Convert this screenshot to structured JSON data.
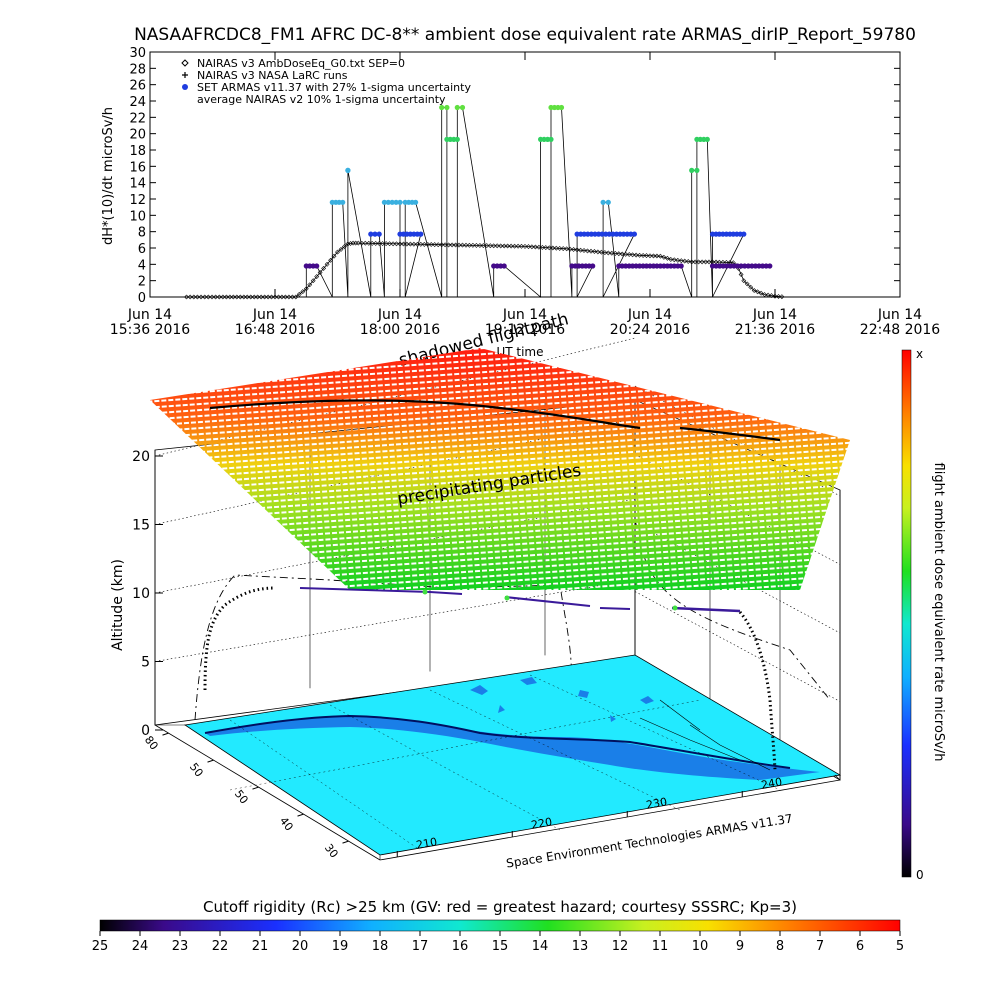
{
  "title": "NASAAFRCDC8_FM1 AFRC DC-8** ambient dose equivalent rate ARMAS_dirIP_Report_59780",
  "chart_data": [
    {
      "type": "scatter",
      "ylabel": "dH*(10)/dt microSv/h",
      "ylim": [
        0,
        30
      ],
      "yticks": [
        0,
        2,
        4,
        6,
        8,
        10,
        12,
        14,
        16,
        18,
        20,
        22,
        24,
        26,
        28,
        30
      ],
      "xlim_hours": [
        15.6,
        22.8
      ],
      "xticks": [
        {
          "hour": 15.6,
          "line1": "Jun 14",
          "line2": "15:36 2016"
        },
        {
          "hour": 16.8,
          "line1": "Jun 14",
          "line2": "16:48 2016"
        },
        {
          "hour": 18.0,
          "line1": "Jun 14",
          "line2": "18:00 2016"
        },
        {
          "hour": 19.2,
          "line1": "Jun 14",
          "line2": "19:12 2016"
        },
        {
          "hour": 20.4,
          "line1": "Jun 14",
          "line2": "20:24 2016"
        },
        {
          "hour": 21.6,
          "line1": "Jun 14",
          "line2": "21:36 2016"
        },
        {
          "hour": 22.8,
          "line1": "Jun 14",
          "line2": "22:48 2016"
        }
      ],
      "xlabel": "UT time",
      "legend_position": "top-left",
      "legend": [
        {
          "symbol": "diamond",
          "label": "NAIRAS v3 AmbDoseEq_G0.txt SEP=0"
        },
        {
          "symbol": "plus",
          "label": "NAIRAS v3 NASA LaRC runs"
        },
        {
          "symbol": "dot",
          "label": "SET ARMAS v11.37 with 27% 1-sigma uncertainty"
        },
        {
          "symbol": "none",
          "label": "average NAIRAS v2 10% 1-sigma uncertainty"
        }
      ],
      "series": [
        {
          "name": "NAIRAS v3 AmbDoseEq_G0.txt SEP=0",
          "x_hours": [
            15.95,
            16.3,
            16.7,
            17.0,
            17.1,
            17.2,
            17.3,
            17.4,
            17.5,
            17.55,
            17.6,
            18.0,
            18.4,
            18.8,
            19.2,
            19.6,
            20.0,
            20.3,
            20.5,
            20.6,
            20.8,
            21.0,
            21.2,
            21.25,
            21.3,
            21.4,
            21.5,
            21.6,
            21.7
          ],
          "y": [
            0,
            0,
            0,
            0,
            1,
            2.5,
            4,
            5.5,
            6.5,
            6.6,
            6.6,
            6.5,
            6.4,
            6.3,
            6.2,
            5.9,
            5.4,
            5.1,
            5.0,
            4.6,
            4.3,
            4.3,
            4.2,
            3.5,
            2.0,
            0.8,
            0.3,
            0.1,
            0
          ]
        },
        {
          "name": "SET ARMAS v11.37 with 27% 1-sigma uncertainty",
          "levels": [
            {
              "x_hours": [
                17.1,
                17.2
              ],
              "y": 3.8,
              "color": "#440a8a"
            },
            {
              "x_hours": [
                17.35,
                17.45
              ],
              "y": 11.6,
              "color": "#3ab0e0"
            },
            {
              "x_hours": [
                17.5,
                17.5
              ],
              "y": 15.5,
              "color": "#3ab0e0"
            },
            {
              "x_hours": [
                17.72,
                17.8
              ],
              "y": 7.7,
              "color": "#1f3de0"
            },
            {
              "x_hours": [
                17.85,
                18.0
              ],
              "y": 11.6,
              "color": "#3ab0e0"
            },
            {
              "x_hours": [
                18.0,
                18.2
              ],
              "y": 7.7,
              "color": "#1f3de0"
            },
            {
              "x_hours": [
                18.05,
                18.15
              ],
              "y": 11.6,
              "color": "#3ab0e0"
            },
            {
              "x_hours": [
                18.4,
                18.45
              ],
              "y": 23.2,
              "color": "#60e040"
            },
            {
              "x_hours": [
                18.45,
                18.55
              ],
              "y": 19.3,
              "color": "#30d060"
            },
            {
              "x_hours": [
                18.55,
                18.6
              ],
              "y": 23.2,
              "color": "#60e040"
            },
            {
              "x_hours": [
                18.9,
                19.0
              ],
              "y": 3.8,
              "color": "#440a8a"
            },
            {
              "x_hours": [
                19.35,
                19.45
              ],
              "y": 19.3,
              "color": "#30d060"
            },
            {
              "x_hours": [
                19.45,
                19.55
              ],
              "y": 23.2,
              "color": "#60e040"
            },
            {
              "x_hours": [
                19.65,
                19.85
              ],
              "y": 3.8,
              "color": "#440a8a"
            },
            {
              "x_hours": [
                19.7,
                20.25
              ],
              "y": 7.7,
              "color": "#1f3de0"
            },
            {
              "x_hours": [
                19.95,
                20.0
              ],
              "y": 11.6,
              "color": "#3ab0e0"
            },
            {
              "x_hours": [
                20.1,
                20.7
              ],
              "y": 3.8,
              "color": "#440a8a"
            },
            {
              "x_hours": [
                20.8,
                20.85
              ],
              "y": 15.5,
              "color": "#30d060"
            },
            {
              "x_hours": [
                20.85,
                20.95
              ],
              "y": 19.3,
              "color": "#30d060"
            },
            {
              "x_hours": [
                21.0,
                21.3
              ],
              "y": 7.7,
              "color": "#1f3de0"
            },
            {
              "x_hours": [
                21.0,
                21.55
              ],
              "y": 3.8,
              "color": "#440a8a"
            }
          ]
        }
      ]
    },
    {
      "type": "scatter",
      "title": "shadowed flightpath",
      "zlabel": "Altitude (km)",
      "zlim": [
        0,
        22
      ],
      "zticks": [
        0,
        5,
        10,
        15,
        20
      ],
      "lat_ticks": [
        80,
        50,
        50,
        40,
        30
      ],
      "lon_ticks": [
        210,
        220,
        230,
        240
      ],
      "annotation": "precipitating particles",
      "credit": "Space Environment Technologies ARMAS v11.37",
      "colorbar": {
        "label": "flight ambient dose equivalent rate microSv/h",
        "top_label": "x",
        "bottom_label": "0"
      }
    }
  ],
  "cutoff_bar": {
    "label": "Cutoff rigidity (Rc) >25 km (GV: red = greatest hazard; courtesy SSSRC; Kp=3)",
    "ticks": [
      "25",
      "24",
      "23",
      "22",
      "21",
      "20",
      "19",
      "18",
      "17",
      "16",
      "15",
      "14",
      "13",
      "12",
      "11",
      "10",
      "9",
      "8",
      "7",
      "6",
      "5"
    ]
  },
  "colors": {
    "nairas": "#000000",
    "map_ocean": "#22eaff",
    "map_land": "#1a7fe8",
    "flight_track": "#3a1a9a"
  }
}
